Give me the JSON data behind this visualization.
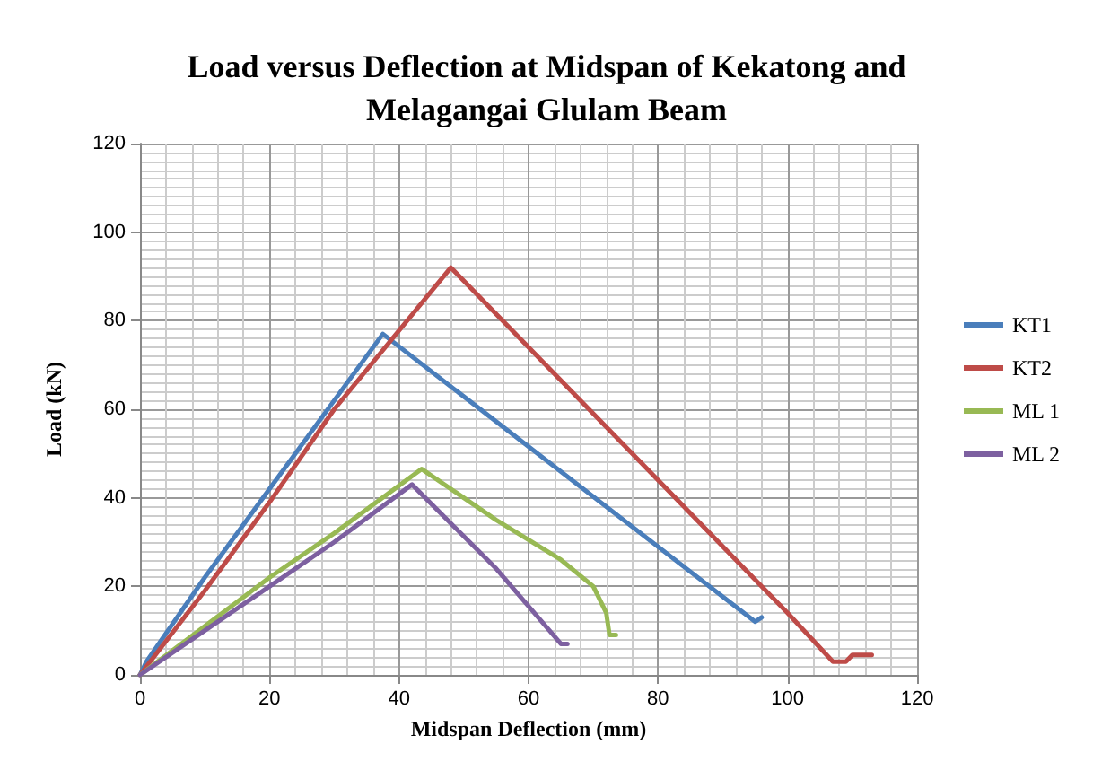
{
  "chart_data": {
    "type": "line",
    "title": "Load versus Deflection at Midspan of Kekatong and\nMelagangai Glulam Beam",
    "xlabel": "Midspan Deflection (mm)",
    "ylabel": "Load (kN)",
    "xlim": [
      0,
      120
    ],
    "xticks": [
      0,
      20,
      40,
      60,
      80,
      100,
      120
    ],
    "ylim": [
      0,
      120
    ],
    "yticks": [
      0,
      20,
      40,
      60,
      80,
      100,
      120
    ],
    "grid": true,
    "legend": "right",
    "marker": "none",
    "line_style": "solid",
    "series": [
      {
        "name": "KT1",
        "color": "#4a7ebb",
        "x": [
          0,
          1,
          10,
          20,
          30,
          37.5,
          95,
          96
        ],
        "values": [
          0,
          3,
          22,
          42,
          62,
          77,
          12,
          13
        ]
      },
      {
        "name": "KT2",
        "color": "#be4b48",
        "x": [
          0,
          10,
          20,
          30,
          48,
          100,
          107,
          109,
          110,
          113
        ],
        "values": [
          0,
          19,
          39,
          60,
          92,
          14,
          3,
          3,
          4.5,
          4.5
        ]
      },
      {
        "name": "ML 1",
        "color": "#98b954",
        "x": [
          0,
          10,
          20,
          30,
          43.5,
          55,
          65,
          70,
          72,
          72.5,
          73.5
        ],
        "values": [
          0,
          11,
          22,
          32,
          46.5,
          35,
          26,
          20,
          14,
          9,
          9
        ]
      },
      {
        "name": "ML 2",
        "color": "#7d60a0",
        "x": [
          0,
          10,
          20,
          30,
          42,
          55,
          65,
          66
        ],
        "values": [
          0,
          10,
          20,
          30,
          43,
          24,
          7,
          7
        ]
      }
    ]
  }
}
